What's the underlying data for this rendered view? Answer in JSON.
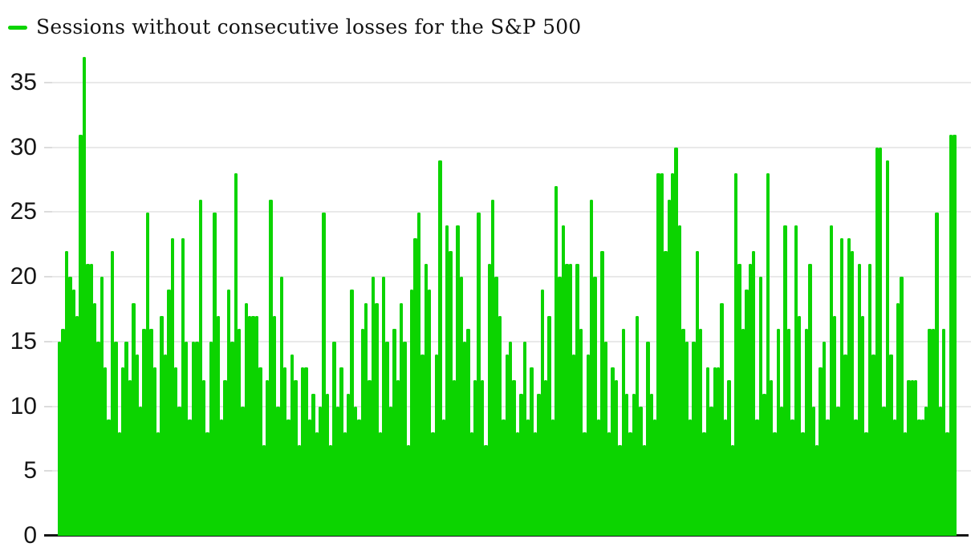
{
  "legend": {
    "label": "Sessions without consecutive losses for the S&P 500"
  },
  "chart_data": {
    "type": "bar",
    "title": "Sessions without consecutive losses for the S&P 500",
    "series_name": "Sessions without consecutive losses for the S&P 500",
    "xlabel": "",
    "ylabel": "",
    "ylim": [
      0,
      37
    ],
    "yticks": [
      0,
      5,
      10,
      15,
      20,
      25,
      30,
      35
    ],
    "grid": true,
    "legend_position": "top-left",
    "x_tick_labels_visible": false,
    "values": [
      15,
      16,
      22,
      20,
      19,
      17,
      31,
      37,
      21,
      21,
      18,
      15,
      20,
      13,
      9,
      22,
      15,
      8,
      13,
      15,
      12,
      18,
      14,
      10,
      16,
      25,
      16,
      13,
      8,
      17,
      14,
      19,
      23,
      13,
      10,
      23,
      15,
      9,
      15,
      15,
      26,
      12,
      8,
      15,
      25,
      17,
      9,
      12,
      19,
      15,
      28,
      16,
      10,
      18,
      17,
      17,
      17,
      13,
      7,
      12,
      26,
      17,
      10,
      20,
      13,
      9,
      14,
      12,
      7,
      13,
      13,
      9,
      11,
      8,
      10,
      25,
      11,
      7,
      15,
      10,
      13,
      8,
      11,
      19,
      10,
      9,
      16,
      18,
      12,
      20,
      18,
      8,
      20,
      15,
      10,
      16,
      12,
      18,
      15,
      7,
      19,
      23,
      25,
      14,
      21,
      19,
      8,
      14,
      29,
      9,
      24,
      22,
      12,
      24,
      20,
      15,
      16,
      8,
      12,
      25,
      12,
      7,
      21,
      26,
      20,
      17,
      9,
      14,
      15,
      12,
      8,
      11,
      15,
      9,
      13,
      8,
      11,
      19,
      12,
      17,
      9,
      27,
      20,
      24,
      21,
      21,
      14,
      21,
      16,
      8,
      14,
      26,
      20,
      9,
      22,
      15,
      8,
      13,
      12,
      7,
      16,
      11,
      8,
      11,
      17,
      10,
      7,
      15,
      11,
      9,
      28,
      28,
      22,
      26,
      28,
      30,
      24,
      16,
      15,
      9,
      15,
      22,
      16,
      8,
      13,
      10,
      13,
      13,
      18,
      9,
      12,
      7,
      28,
      21,
      16,
      19,
      21,
      22,
      9,
      20,
      11,
      28,
      12,
      8,
      16,
      10,
      24,
      16,
      9,
      24,
      17,
      8,
      16,
      21,
      10,
      7,
      13,
      15,
      9,
      24,
      17,
      10,
      23,
      14,
      23,
      22,
      9,
      21,
      17,
      8,
      21,
      14,
      30,
      30,
      10,
      29,
      14,
      9,
      18,
      20,
      8,
      12,
      12,
      12,
      9,
      9,
      10,
      16,
      16,
      25,
      10,
      16,
      8,
      31,
      31
    ],
    "colors": {
      "series": "#0CD400",
      "grid": "#E9E9E9",
      "tick_stub": "#DCDCDC",
      "axis": "#151515",
      "text": "#161616"
    }
  }
}
